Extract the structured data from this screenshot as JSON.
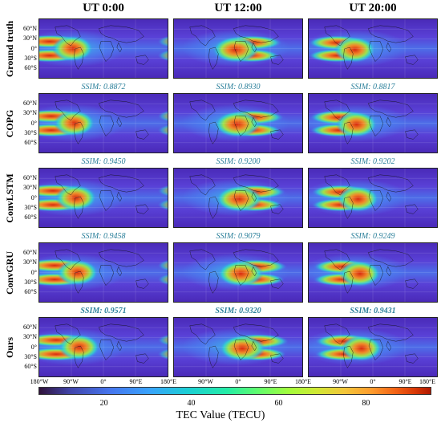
{
  "columns": [
    "UT 0:00",
    "UT 12:00",
    "UT 20:00"
  ],
  "rows": [
    {
      "label": "Ground truth",
      "ssim": null
    },
    {
      "label": "COPG",
      "ssim": [
        "SSIM: 0.8872",
        "SSIM: 0.8930",
        "SSIM: 0.8817"
      ]
    },
    {
      "label": "ConvLSTM",
      "ssim": [
        "SSIM: 0.9450",
        "SSIM: 0.9200",
        "SSIM: 0.9202"
      ]
    },
    {
      "label": "ConvGRU",
      "ssim": [
        "SSIM: 0.9458",
        "SSIM: 0.9079",
        "SSIM: 0.9249"
      ]
    },
    {
      "label": "Ours",
      "ssim": [
        "SSIM: 0.9571",
        "SSIM: 0.9320",
        "SSIM: 0.9431"
      ],
      "best": true
    }
  ],
  "lat_ticks": [
    "60°N",
    "30°N",
    "0°",
    "30°S",
    "60°S"
  ],
  "lon_ticks": [
    "180°W",
    "90°W",
    "0°",
    "90°E",
    "180°E"
  ],
  "colorbar": {
    "label": "TEC Value (TECU)",
    "ticks": [
      "20",
      "40",
      "60",
      "80"
    ],
    "range": [
      5,
      95
    ],
    "colormap": "turbo"
  },
  "colors": {
    "ssim_text": "#2a7f9a",
    "background_low": "#5a32c8",
    "peak": "#e8361a"
  }
}
